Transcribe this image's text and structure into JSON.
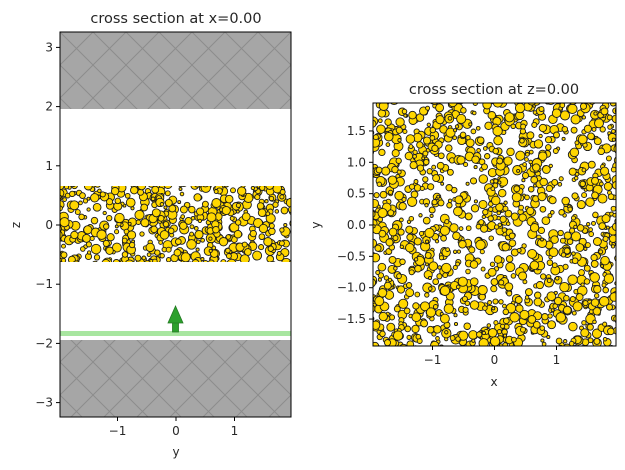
{
  "chart_data": [
    {
      "type": "scatter",
      "title": "cross section at x=0.00",
      "xlabel": "y",
      "ylabel": "z",
      "xlim": [
        -1.98,
        1.98
      ],
      "ylim": [
        -3.25,
        3.25
      ],
      "xticks": [
        "−1",
        "0",
        "1"
      ],
      "yticks": [
        "−3",
        "−2",
        "−1",
        "0",
        "1",
        "2",
        "3"
      ],
      "regions": [
        {
          "name": "top substrate (hatched gray)",
          "z_range": [
            1.95,
            3.25
          ],
          "color": "#a6a6a6"
        },
        {
          "name": "particle layer (gold spheres)",
          "z_range": [
            -0.65,
            0.65
          ],
          "color": "#ffd700"
        },
        {
          "name": "bottom substrate (hatched gray)",
          "z_range": [
            -3.25,
            -1.95
          ],
          "color": "#a6a6a6"
        },
        {
          "name": "source plane",
          "z": -1.85,
          "color": "#a8e6a0"
        },
        {
          "name": "source direction arrow",
          "y": 0,
          "z_from": -1.85,
          "z_to": -1.4,
          "color": "#2ca02c"
        }
      ]
    },
    {
      "type": "scatter",
      "title": "cross section at z=0.00",
      "xlabel": "x",
      "ylabel": "y",
      "xlim": [
        -1.95,
        1.95
      ],
      "ylim": [
        -1.95,
        1.95
      ],
      "xticks": [
        "−1",
        "0",
        "1"
      ],
      "yticks": [
        "−1.5",
        "−1.0",
        "−0.5",
        "0.0",
        "0.5",
        "1.0",
        "1.5"
      ],
      "regions": [
        {
          "name": "particle layer (gold spheres) filling entire cross section",
          "color": "#ffd700"
        }
      ]
    }
  ],
  "left": {
    "title": "cross section at x=0.00",
    "xlabel": "y",
    "ylabel": "z",
    "xticks": [
      {
        "v": -1,
        "label": "−1"
      },
      {
        "v": 0,
        "label": "0"
      },
      {
        "v": 1,
        "label": "1"
      }
    ],
    "yticks": [
      {
        "v": -3,
        "label": "−3"
      },
      {
        "v": -2,
        "label": "−2"
      },
      {
        "v": -1,
        "label": "−1"
      },
      {
        "v": 0,
        "label": "0"
      },
      {
        "v": 1,
        "label": "1"
      },
      {
        "v": 2,
        "label": "2"
      },
      {
        "v": 3,
        "label": "3"
      }
    ]
  },
  "right": {
    "title": "cross section at z=0.00",
    "xlabel": "x",
    "ylabel": "y",
    "xticks": [
      {
        "v": -1,
        "label": "−1"
      },
      {
        "v": 0,
        "label": "0"
      },
      {
        "v": 1,
        "label": "1"
      }
    ],
    "yticks": [
      {
        "v": -1.5,
        "label": "−1.5"
      },
      {
        "v": -1.0,
        "label": "−1.0"
      },
      {
        "v": -0.5,
        "label": "−0.5"
      },
      {
        "v": 0.0,
        "label": "0.0"
      },
      {
        "v": 0.5,
        "label": "0.5"
      },
      {
        "v": 1.0,
        "label": "1.0"
      },
      {
        "v": 1.5,
        "label": "1.5"
      }
    ]
  },
  "colors": {
    "substrate": "#a6a6a6",
    "hatch": "#8c8c8c",
    "particle_fill": "#ffd700",
    "particle_edge": "#1a1a1a",
    "source_plane": "#a8e6a0",
    "source_arrow": "#2ca02c"
  }
}
